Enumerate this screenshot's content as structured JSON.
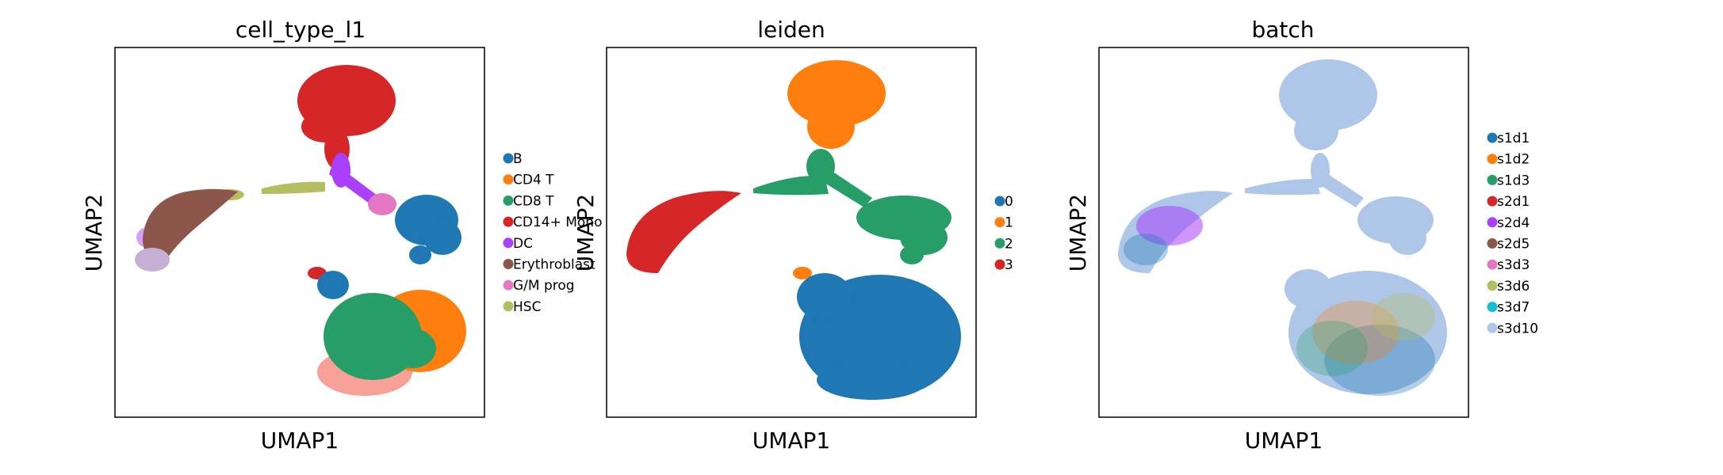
{
  "chart_data": [
    {
      "type": "scatter",
      "title": "cell_type_l1",
      "xlabel": "UMAP1",
      "ylabel": "UMAP2",
      "xticks": [],
      "yticks": [],
      "legend_position": "right",
      "series": [
        {
          "name": "B",
          "color": "#1f77b4"
        },
        {
          "name": "CD4 T",
          "color": "#ff7f0e"
        },
        {
          "name": "CD8 T",
          "color": "#279e68"
        },
        {
          "name": "CD14+ Mono",
          "color": "#d62728"
        },
        {
          "name": "DC",
          "color": "#aa40fc"
        },
        {
          "name": "Erythroblast",
          "color": "#8c564b"
        },
        {
          "name": "G/M prog",
          "color": "#e377c2"
        },
        {
          "name": "HSC",
          "color": "#b5bd61"
        }
      ]
    },
    {
      "type": "scatter",
      "title": "leiden",
      "xlabel": "UMAP1",
      "ylabel": "UMAP2",
      "xticks": [],
      "yticks": [],
      "legend_position": "right",
      "series": [
        {
          "name": "0",
          "color": "#1f77b4"
        },
        {
          "name": "1",
          "color": "#ff7f0e"
        },
        {
          "name": "2",
          "color": "#279e68"
        },
        {
          "name": "3",
          "color": "#d62728"
        }
      ]
    },
    {
      "type": "scatter",
      "title": "batch",
      "xlabel": "UMAP1",
      "ylabel": "UMAP2",
      "xticks": [],
      "yticks": [],
      "legend_position": "right",
      "series": [
        {
          "name": "s1d1",
          "color": "#1f77b4"
        },
        {
          "name": "s1d2",
          "color": "#ff7f0e"
        },
        {
          "name": "s1d3",
          "color": "#279e68"
        },
        {
          "name": "s2d1",
          "color": "#d62728"
        },
        {
          "name": "s2d4",
          "color": "#aa40fc"
        },
        {
          "name": "s2d5",
          "color": "#8c564b"
        },
        {
          "name": "s3d3",
          "color": "#e377c2"
        },
        {
          "name": "s3d6",
          "color": "#b5bd61"
        },
        {
          "name": "s3d7",
          "color": "#17becf"
        },
        {
          "name": "s3d10",
          "color": "#aec7e8"
        }
      ]
    }
  ]
}
